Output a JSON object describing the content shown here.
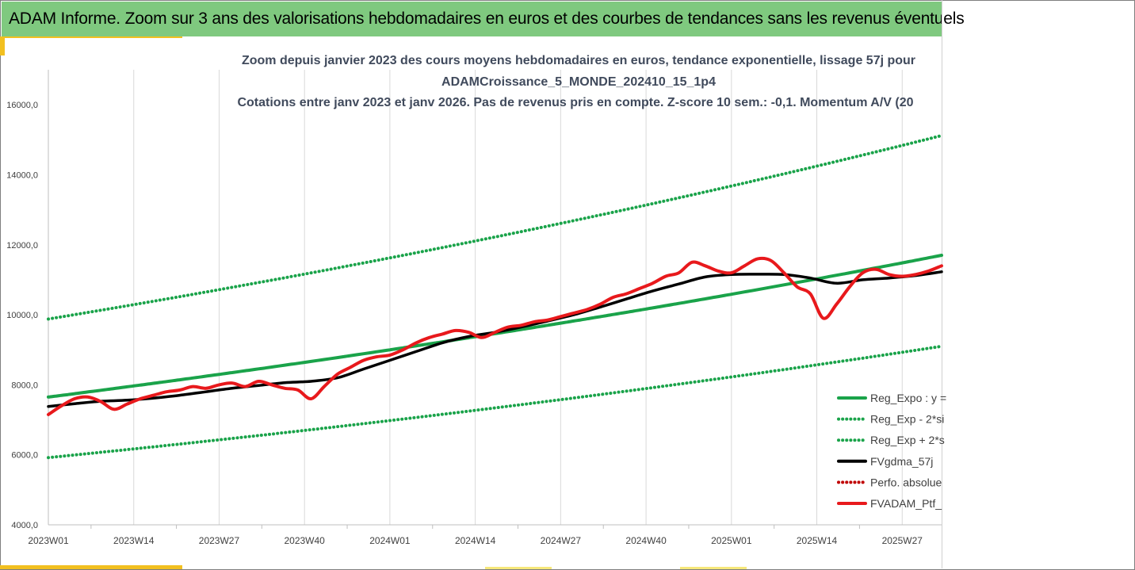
{
  "header": {
    "title": "ADAM Informe. Zoom sur 3 ans des valorisations hebdomadaires en euros et des courbes de tendances sans les revenus éventuels"
  },
  "colors": {
    "header_bg": "#7fc97f",
    "trend": "#1aa34a",
    "bands": "#1aa34a",
    "gdma": "#000000",
    "perf_abs": "#c00000",
    "portfolio": "#e8191c",
    "accent_tab": "#f2c020"
  },
  "chart_data": {
    "type": "line",
    "title_lines": [
      "Zoom depuis janvier 2023 des cours moyens hebdomadaires  en euros,  tendance exponentielle, lissage 57j pour",
      "ADAMCroissance_5_MONDE_202410_15_1p4",
      "Cotations entre janv 2023 et janv 2026. Pas de revenus pris en compte. Z-score 10 sem.: -0,1. Momentum A/V (20"
    ],
    "ylim": [
      4000,
      17000
    ],
    "y_ticks": [
      4000,
      6000,
      8000,
      10000,
      12000,
      14000,
      16000
    ],
    "y_tick_labels": [
      "4000,0",
      "6000,0",
      "8000,0",
      "10000,0",
      "12000,0",
      "14000,0",
      "16000,0"
    ],
    "x_range_weeks": [
      0,
      136
    ],
    "x_ticks": [
      0,
      13,
      26,
      39,
      52,
      65,
      78,
      91,
      104,
      117,
      130
    ],
    "x_tick_labels": [
      "2023W01",
      "2023W14",
      "2023W27",
      "2023W40",
      "2024W01",
      "2024W14",
      "2024W27",
      "2024W40",
      "2025W01",
      "2025W14",
      "2025W27"
    ],
    "grid": true,
    "legend_position": "bottom-right",
    "series": [
      {
        "name": "Reg_Expo : y =",
        "style": "solid",
        "color": "#1aa34a",
        "x": [
          0,
          136
        ],
        "values": [
          7650,
          11700
        ],
        "exponential": true
      },
      {
        "name": "Reg_Exp - 2*si",
        "style": "dotted",
        "color": "#1aa34a",
        "x": [
          0,
          136
        ],
        "values": [
          5920,
          9100
        ],
        "exponential": true
      },
      {
        "name": "Reg_Exp + 2*s",
        "style": "dotted",
        "color": "#1aa34a",
        "x": [
          0,
          136
        ],
        "values": [
          9880,
          15120
        ],
        "exponential": true
      },
      {
        "name": "FVgdma_57j",
        "style": "solid",
        "color": "#000000",
        "x": [
          0,
          4,
          8,
          12,
          16,
          20,
          24,
          28,
          32,
          36,
          40,
          44,
          48,
          52,
          56,
          60,
          64,
          68,
          72,
          76,
          80,
          84,
          88,
          92,
          96,
          100,
          104,
          108,
          112,
          116,
          120,
          124,
          128,
          132,
          136
        ],
        "values": [
          7380,
          7460,
          7530,
          7560,
          7620,
          7700,
          7800,
          7900,
          7980,
          8060,
          8100,
          8200,
          8450,
          8700,
          8950,
          9200,
          9380,
          9500,
          9650,
          9820,
          10000,
          10220,
          10450,
          10680,
          10880,
          11080,
          11150,
          11160,
          11150,
          11050,
          10900,
          11000,
          11050,
          11120,
          11230
        ]
      },
      {
        "name": "Perfo. absolue",
        "style": "dotted",
        "color": "#c00000",
        "x": [],
        "values": []
      },
      {
        "name": "FVADAM_Ptf_",
        "style": "solid",
        "color": "#e8191c",
        "x": [
          0,
          2,
          4,
          6,
          8,
          10,
          12,
          14,
          16,
          18,
          20,
          22,
          24,
          26,
          28,
          30,
          32,
          34,
          36,
          38,
          40,
          42,
          44,
          46,
          48,
          50,
          52,
          54,
          56,
          58,
          60,
          62,
          64,
          66,
          68,
          70,
          72,
          74,
          76,
          78,
          80,
          82,
          84,
          86,
          88,
          90,
          92,
          94,
          96,
          98,
          100,
          102,
          104,
          106,
          108,
          110,
          112,
          114,
          116,
          118,
          120,
          122,
          124,
          126,
          128,
          130,
          132,
          134,
          136
        ],
        "values": [
          7150,
          7400,
          7600,
          7650,
          7520,
          7300,
          7450,
          7600,
          7700,
          7800,
          7850,
          7950,
          7900,
          8000,
          8050,
          7950,
          8100,
          8000,
          7900,
          7850,
          7600,
          7950,
          8300,
          8500,
          8700,
          8800,
          8850,
          9000,
          9200,
          9350,
          9450,
          9550,
          9500,
          9350,
          9500,
          9650,
          9700,
          9800,
          9850,
          9950,
          10050,
          10150,
          10300,
          10500,
          10600,
          10750,
          10900,
          11100,
          11200,
          11500,
          11400,
          11250,
          11200,
          11400,
          11600,
          11550,
          11200,
          10800,
          10600,
          9900,
          10300,
          10800,
          11200,
          11300,
          11150,
          11100,
          11150,
          11250,
          11400
        ]
      }
    ]
  }
}
